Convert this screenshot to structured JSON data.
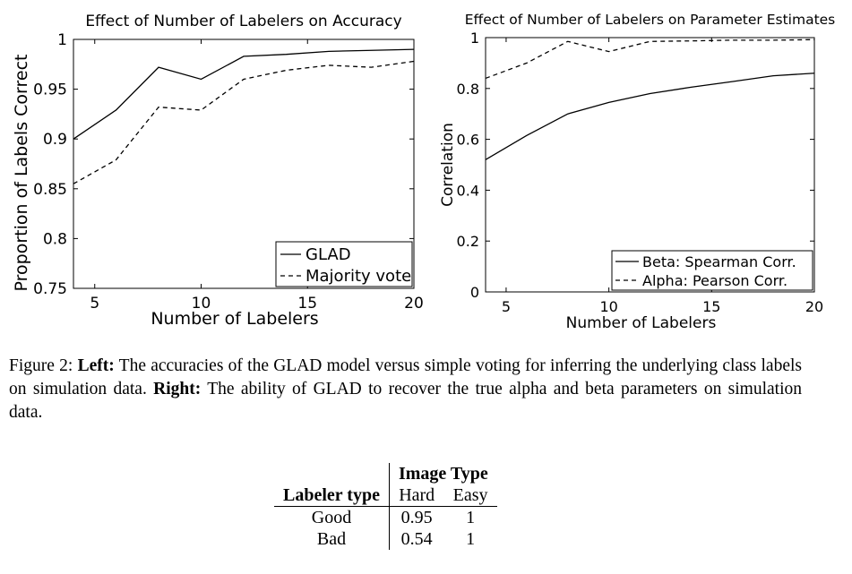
{
  "chart_data": [
    {
      "type": "line",
      "title": "Effect of Number of Labelers on Accuracy",
      "xlabel": "Number of Labelers",
      "ylabel": "Proportion of Labels Correct",
      "xlim": [
        4,
        20
      ],
      "ylim": [
        0.75,
        1
      ],
      "xticks": [
        5,
        10,
        15,
        20
      ],
      "yticks": [
        0.75,
        0.8,
        0.85,
        0.9,
        0.95,
        1
      ],
      "ytick_labels": [
        "0.75",
        "0.8",
        "0.85",
        "0.9",
        "0.95",
        "1"
      ],
      "legend_position": "bottom-right",
      "series": [
        {
          "name": "GLAD",
          "style": "solid",
          "x": [
            4,
            6,
            8,
            10,
            12,
            14,
            16,
            18,
            20
          ],
          "y": [
            0.9,
            0.929,
            0.972,
            0.96,
            0.983,
            0.985,
            0.988,
            0.989,
            0.99
          ]
        },
        {
          "name": "Majority vote",
          "style": "dashed",
          "x": [
            4,
            6,
            8,
            10,
            12,
            14,
            16,
            18,
            20
          ],
          "y": [
            0.855,
            0.879,
            0.932,
            0.929,
            0.96,
            0.969,
            0.974,
            0.972,
            0.978
          ]
        }
      ]
    },
    {
      "type": "line",
      "title": "Effect of Number of Labelers on Parameter Estimates",
      "xlabel": "Number of Labelers",
      "ylabel": "Correlation",
      "xlim": [
        4,
        20
      ],
      "ylim": [
        0,
        1
      ],
      "xticks": [
        5,
        10,
        15,
        20
      ],
      "yticks": [
        0,
        0.2,
        0.4,
        0.6,
        0.8,
        1
      ],
      "ytick_labels": [
        "0",
        "0.2",
        "0.4",
        "0.6",
        "0.8",
        "1"
      ],
      "legend_position": "bottom-right",
      "series": [
        {
          "name": "Beta: Spearman Corr.",
          "style": "solid",
          "x": [
            4,
            6,
            8,
            10,
            12,
            14,
            16,
            18,
            20
          ],
          "y": [
            0.52,
            0.615,
            0.7,
            0.745,
            0.78,
            0.805,
            0.827,
            0.85,
            0.86
          ]
        },
        {
          "name": "Alpha: Pearson Corr.",
          "style": "dashed",
          "x": [
            4,
            6,
            8,
            10,
            12,
            14,
            16,
            18,
            20
          ],
          "y": [
            0.84,
            0.9,
            0.985,
            0.945,
            0.985,
            0.987,
            0.99,
            0.99,
            0.992
          ]
        }
      ]
    }
  ],
  "caption": {
    "prefix": "Figure 2: ",
    "left_label": "Left:",
    "left_text": " The accuracies of the GLAD model versus simple voting for inferring the underlying class labels on simulation data. ",
    "right_label": "Right:",
    "right_text": " The ability of GLAD to recover the true alpha and beta parameters on simulation data."
  },
  "table": {
    "group_header": "Image Type",
    "row_header": "Labeler type",
    "columns": [
      "Hard",
      "Easy"
    ],
    "rows": [
      {
        "label": "Good",
        "values": [
          "0.95",
          "1"
        ]
      },
      {
        "label": "Bad",
        "values": [
          "0.54",
          "1"
        ]
      }
    ]
  }
}
